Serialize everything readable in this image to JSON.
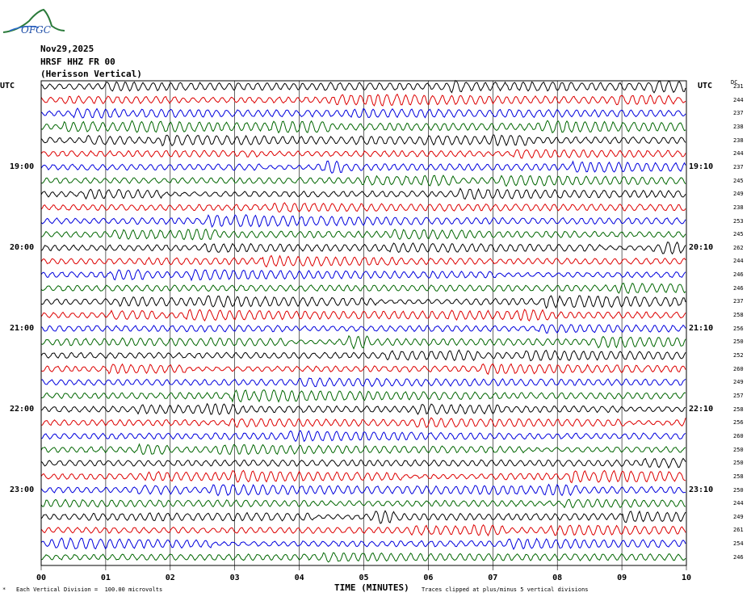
{
  "header": {
    "date": "Nov29,2025",
    "station": "HRSF HHZ FR 00",
    "name": "(Herisson Vertical)"
  },
  "logo": {
    "text": "OFGC",
    "color": "#2a7a3a"
  },
  "left_axis_label": "UTC",
  "right_axis_label": "UTC",
  "dc_label": "DC",
  "colors": [
    "#000000",
    "#dd0000",
    "#0000dd",
    "#006600"
  ],
  "chart_data": {
    "type": "line",
    "title": "",
    "xlabel": "TIME (MINUTES)",
    "ylabel": "",
    "xlim": [
      0,
      10
    ],
    "x_ticks": [
      "00",
      "01",
      "02",
      "03",
      "04",
      "05",
      "06",
      "07",
      "08",
      "09",
      "10"
    ],
    "left_hour_labels": [
      {
        "trace": 6,
        "label": "19:00"
      },
      {
        "trace": 12,
        "label": "20:00"
      },
      {
        "trace": 18,
        "label": "21:00"
      },
      {
        "trace": 24,
        "label": "22:00"
      },
      {
        "trace": 30,
        "label": "23:00"
      }
    ],
    "right_hour_labels": [
      {
        "trace": 6,
        "label": "19:10"
      },
      {
        "trace": 12,
        "label": "20:10"
      },
      {
        "trace": 18,
        "label": "21:10"
      },
      {
        "trace": 24,
        "label": "22:10"
      },
      {
        "trace": 30,
        "label": "23:10"
      }
    ],
    "dc_offsets": [
      231,
      244,
      237,
      238,
      238,
      244,
      237,
      245,
      249,
      238,
      253,
      245,
      262,
      244,
      246,
      246,
      237,
      258,
      256,
      250,
      252,
      260,
      249,
      257,
      258,
      256,
      260,
      250,
      250,
      258,
      250,
      244,
      249,
      261,
      254,
      246
    ],
    "trace_count": 36,
    "grid": true
  },
  "footer": {
    "left": "Each Vertical Division =  100.00 microvolts",
    "right": "Traces clipped at plus/minus 5 vertical divisions"
  }
}
